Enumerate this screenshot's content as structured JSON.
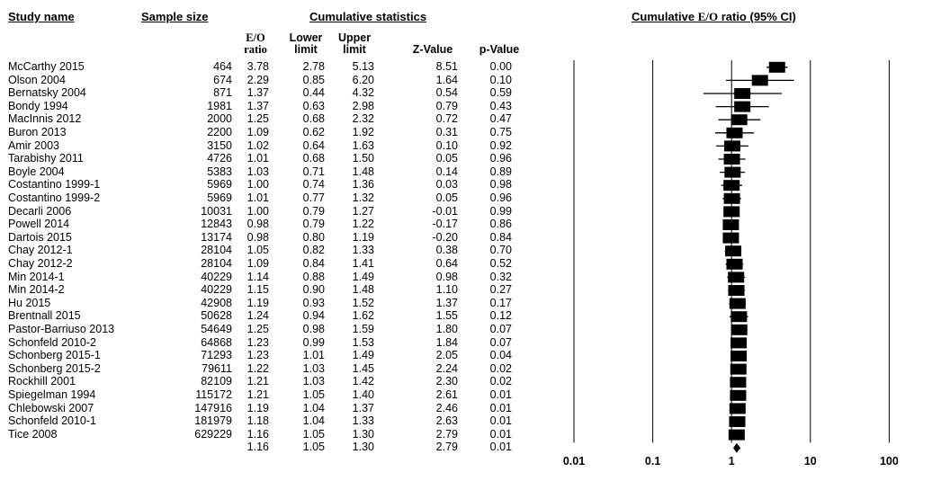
{
  "headers": {
    "study_name": "Study name",
    "sample_size": "Sample size",
    "cumulative_statistics": "Cumulative statistics",
    "plot_title_prefix": "Cumulative ",
    "plot_title_eo": "E/O",
    "plot_title_suffix": " ratio (95% CI)",
    "col_ratio_1": "E/O",
    "col_ratio_2": "ratio",
    "col_lower_1": "Lower",
    "col_lower_2": "limit",
    "col_upper_1": "Upper",
    "col_upper_2": "limit",
    "col_z": "Z-Value",
    "col_p": "p-Value"
  },
  "chart_data": {
    "type": "forest",
    "x_scale": "log",
    "x_ticks": [
      0.01,
      0.1,
      1,
      10,
      100
    ],
    "x_tick_labels": [
      "0.01",
      "0.1",
      "1",
      "10",
      "100"
    ],
    "grid_vertical": true,
    "studies": [
      {
        "name": "McCarthy 2015",
        "n": "464",
        "ratio": "3.78",
        "lower": "2.78",
        "upper": "5.13",
        "z": "8.51",
        "p": "0.00"
      },
      {
        "name": "Olson 2004",
        "n": "674",
        "ratio": "2.29",
        "lower": "0.85",
        "upper": "6.20",
        "z": "1.64",
        "p": "0.10"
      },
      {
        "name": "Bernatsky 2004",
        "n": "871",
        "ratio": "1.37",
        "lower": "0.44",
        "upper": "4.32",
        "z": "0.54",
        "p": "0.59"
      },
      {
        "name": "Bondy 1994",
        "n": "1981",
        "ratio": "1.37",
        "lower": "0.63",
        "upper": "2.98",
        "z": "0.79",
        "p": "0.43"
      },
      {
        "name": "MacInnis 2012",
        "n": "2000",
        "ratio": "1.25",
        "lower": "0.68",
        "upper": "2.32",
        "z": "0.72",
        "p": "0.47"
      },
      {
        "name": "Buron 2013",
        "n": "2200",
        "ratio": "1.09",
        "lower": "0.62",
        "upper": "1.92",
        "z": "0.31",
        "p": "0.75"
      },
      {
        "name": "Amir 2003",
        "n": "3150",
        "ratio": "1.02",
        "lower": "0.64",
        "upper": "1.63",
        "z": "0.10",
        "p": "0.92"
      },
      {
        "name": "Tarabishy 2011",
        "n": "4726",
        "ratio": "1.01",
        "lower": "0.68",
        "upper": "1.50",
        "z": "0.05",
        "p": "0.96"
      },
      {
        "name": "Boyle 2004",
        "n": "5383",
        "ratio": "1.03",
        "lower": "0.71",
        "upper": "1.48",
        "z": "0.14",
        "p": "0.89"
      },
      {
        "name": "Costantino 1999-1",
        "n": "5969",
        "ratio": "1.00",
        "lower": "0.74",
        "upper": "1.36",
        "z": "0.03",
        "p": "0.98"
      },
      {
        "name": "Costantino 1999-2",
        "n": "5969",
        "ratio": "1.01",
        "lower": "0.77",
        "upper": "1.32",
        "z": "0.05",
        "p": "0.96"
      },
      {
        "name": "Decarli 2006",
        "n": "10031",
        "ratio": "1.00",
        "lower": "0.79",
        "upper": "1.27",
        "z": "-0.01",
        "p": "0.99"
      },
      {
        "name": "Powell 2014",
        "n": "12843",
        "ratio": "0.98",
        "lower": "0.79",
        "upper": "1.22",
        "z": "-0.17",
        "p": "0.86"
      },
      {
        "name": "Dartois 2015",
        "n": "13174",
        "ratio": "0.98",
        "lower": "0.80",
        "upper": "1.19",
        "z": "-0.20",
        "p": "0.84"
      },
      {
        "name": "Chay 2012-1",
        "n": "28104",
        "ratio": "1.05",
        "lower": "0.82",
        "upper": "1.33",
        "z": "0.38",
        "p": "0.70"
      },
      {
        "name": "Chay 2012-2",
        "n": "28104",
        "ratio": "1.09",
        "lower": "0.84",
        "upper": "1.41",
        "z": "0.64",
        "p": "0.52"
      },
      {
        "name": "Min 2014-1",
        "n": "40229",
        "ratio": "1.14",
        "lower": "0.88",
        "upper": "1.49",
        "z": "0.98",
        "p": "0.32"
      },
      {
        "name": "Min 2014-2",
        "n": "40229",
        "ratio": "1.15",
        "lower": "0.90",
        "upper": "1.48",
        "z": "1.10",
        "p": "0.27"
      },
      {
        "name": "Hu 2015",
        "n": "42908",
        "ratio": "1.19",
        "lower": "0.93",
        "upper": "1.52",
        "z": "1.37",
        "p": "0.17"
      },
      {
        "name": "Brentnall 2015",
        "n": "50628",
        "ratio": "1.24",
        "lower": "0.94",
        "upper": "1.62",
        "z": "1.55",
        "p": "0.12"
      },
      {
        "name": "Pastor-Barriuso 2013",
        "n": "54649",
        "ratio": "1.25",
        "lower": "0.98",
        "upper": "1.59",
        "z": "1.80",
        "p": "0.07"
      },
      {
        "name": "Schonfeld 2010-2",
        "n": "64868",
        "ratio": "1.23",
        "lower": "0.99",
        "upper": "1.53",
        "z": "1.84",
        "p": "0.07"
      },
      {
        "name": "Schonberg 2015-1",
        "n": "71293",
        "ratio": "1.23",
        "lower": "1.01",
        "upper": "1.49",
        "z": "2.05",
        "p": "0.04"
      },
      {
        "name": "Schonberg 2015-2",
        "n": "79611",
        "ratio": "1.22",
        "lower": "1.03",
        "upper": "1.45",
        "z": "2.24",
        "p": "0.02"
      },
      {
        "name": "Rockhill 2001",
        "n": "82109",
        "ratio": "1.21",
        "lower": "1.03",
        "upper": "1.42",
        "z": "2.30",
        "p": "0.02"
      },
      {
        "name": "Spiegelman 1994",
        "n": "115172",
        "ratio": "1.21",
        "lower": "1.05",
        "upper": "1.40",
        "z": "2.61",
        "p": "0.01"
      },
      {
        "name": "Chlebowski 2007",
        "n": "147916",
        "ratio": "1.19",
        "lower": "1.04",
        "upper": "1.37",
        "z": "2.46",
        "p": "0.01"
      },
      {
        "name": "Schonfeld 2010-1",
        "n": "181979",
        "ratio": "1.18",
        "lower": "1.04",
        "upper": "1.33",
        "z": "2.63",
        "p": "0.01"
      },
      {
        "name": "Tice 2008",
        "n": "629229",
        "ratio": "1.16",
        "lower": "1.05",
        "upper": "1.30",
        "z": "2.79",
        "p": "0.01"
      }
    ],
    "summary": {
      "name": "",
      "n": "",
      "ratio": "1.16",
      "lower": "1.05",
      "upper": "1.30",
      "z": "2.79",
      "p": "0.01"
    }
  }
}
